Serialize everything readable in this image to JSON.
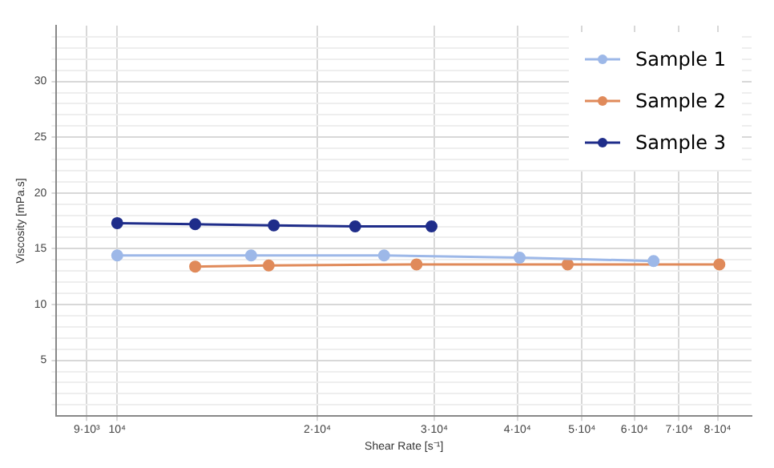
{
  "chart_data": {
    "type": "line",
    "xlabel": "Shear Rate [s⁻¹]",
    "ylabel": "Viscosity [mPa.s]",
    "log": "x",
    "grid": true,
    "legend": "top right",
    "marker": "circle",
    "line_style": "solid",
    "xlim": [
      8100,
      90000
    ],
    "xticks": [
      {
        "value": 9000,
        "label": "9·10³"
      },
      {
        "value": 10000,
        "label": "10⁴"
      },
      {
        "value": 20000,
        "label": "2·10⁴"
      },
      {
        "value": 30000,
        "label": "3·10⁴"
      },
      {
        "value": 40000,
        "label": "4·10⁴"
      },
      {
        "value": 50000,
        "label": "5·10⁴"
      },
      {
        "value": 60000,
        "label": "6·10⁴"
      },
      {
        "value": 70000,
        "label": "7·10⁴"
      },
      {
        "value": 80000,
        "label": "8·10⁴"
      }
    ],
    "ylim": [
      0,
      35
    ],
    "yticks": [
      {
        "value": 1,
        "label": null
      },
      {
        "value": 2,
        "label": null
      },
      {
        "value": 3,
        "label": null
      },
      {
        "value": 4,
        "label": null
      },
      5,
      {
        "value": 6,
        "label": null
      },
      {
        "value": 7,
        "label": null
      },
      {
        "value": 8,
        "label": null
      },
      {
        "value": 9,
        "label": null
      },
      10,
      {
        "value": 11,
        "label": null
      },
      {
        "value": 12,
        "label": null
      },
      {
        "value": 13,
        "label": null
      },
      {
        "value": 14,
        "label": null
      },
      15,
      {
        "value": 16,
        "label": null
      },
      {
        "value": 17,
        "label": null
      },
      {
        "value": 18,
        "label": null
      },
      {
        "value": 19,
        "label": null
      },
      20,
      {
        "value": 21,
        "label": null
      },
      {
        "value": 22,
        "label": null
      },
      {
        "value": 23,
        "label": null
      },
      {
        "value": 24,
        "label": null
      },
      25,
      {
        "value": 26,
        "label": null
      },
      {
        "value": 27,
        "label": null
      },
      {
        "value": 28,
        "label": null
      },
      {
        "value": 29,
        "label": null
      },
      30,
      {
        "value": 31,
        "label": null
      },
      {
        "value": 32,
        "label": null
      },
      {
        "value": 33,
        "label": null
      },
      {
        "value": 34,
        "label": null
      }
    ],
    "series": [
      {
        "name": "Sample 1",
        "color": "#9db8e8",
        "x": [
          10000,
          15900,
          25200,
          40300,
          64100
        ],
        "values": [
          14.4,
          14.4,
          14.4,
          14.2,
          13.9
        ]
      },
      {
        "name": "Sample 2",
        "color": "#e08a5a",
        "x": [
          13100,
          16900,
          28200,
          47600,
          80500
        ],
        "values": [
          13.4,
          13.5,
          13.6,
          13.6,
          13.6
        ]
      },
      {
        "name": "Sample 3",
        "color": "#1f2d8a",
        "x": [
          10000,
          13100,
          17200,
          22800,
          29700
        ],
        "values": [
          17.3,
          17.2,
          17.1,
          17.0,
          17.0
        ]
      }
    ]
  }
}
